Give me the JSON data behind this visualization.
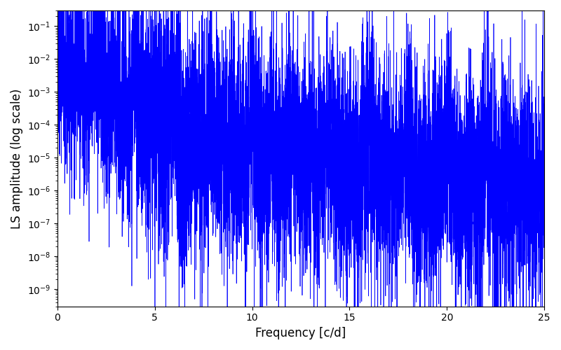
{
  "title": "",
  "xlabel": "Frequency [c/d]",
  "ylabel": "LS amplitude (log scale)",
  "line_color": "#0000FF",
  "line_width": 0.5,
  "xlim": [
    0,
    25
  ],
  "ylim": [
    3e-10,
    0.3
  ],
  "yscale": "log",
  "figsize": [
    8.0,
    5.0
  ],
  "dpi": 100,
  "seed": 12345,
  "n_points": 8000,
  "freq_max": 25.0,
  "background_color": "#ffffff"
}
